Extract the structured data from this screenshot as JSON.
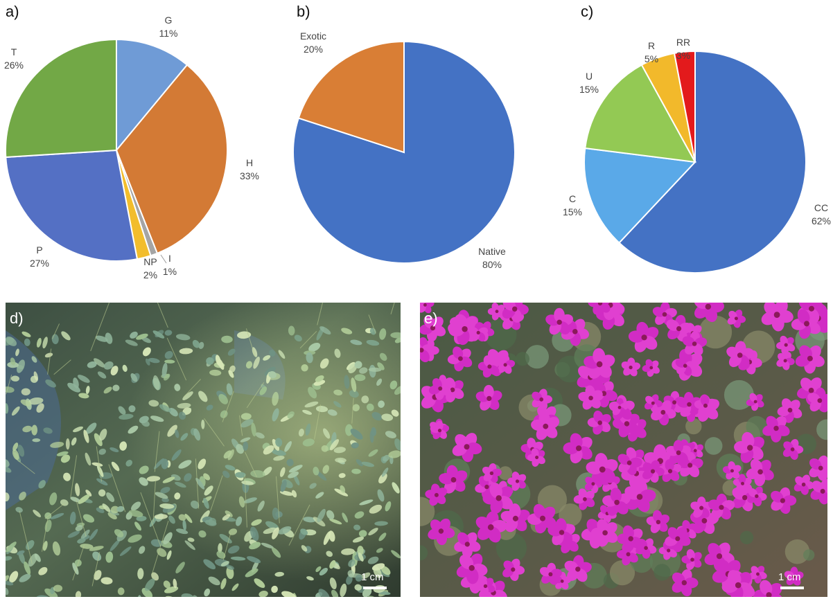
{
  "chart_data": [
    {
      "type": "pie",
      "panel_label": "a)",
      "slices": [
        {
          "label": "G",
          "value": 11,
          "pct": "11%",
          "color": "#6f9bd6"
        },
        {
          "label": "H",
          "value": 33,
          "pct": "33%",
          "color": "#d37a35"
        },
        {
          "label": "I",
          "value": 1,
          "pct": "1%",
          "color": "#a5a5a5"
        },
        {
          "label": "NP",
          "value": 2,
          "pct": "2%",
          "color": "#f2bd2c"
        },
        {
          "label": "P",
          "value": 27,
          "pct": "27%",
          "color": "#5470c4"
        },
        {
          "label": "T",
          "value": 26,
          "pct": "26%",
          "color": "#72a846"
        }
      ]
    },
    {
      "type": "pie",
      "panel_label": "b)",
      "slices": [
        {
          "label": "Native",
          "value": 80,
          "pct": "80%",
          "color": "#4472c4"
        },
        {
          "label": "Exotic",
          "value": 20,
          "pct": "20%",
          "color": "#d97e35"
        }
      ]
    },
    {
      "type": "pie",
      "panel_label": "c)",
      "slices": [
        {
          "label": "CC",
          "value": 62,
          "pct": "62%",
          "color": "#4472c4"
        },
        {
          "label": "C",
          "value": 15,
          "pct": "15%",
          "color": "#5aa9e8"
        },
        {
          "label": "U",
          "value": 15,
          "pct": "15%",
          "color": "#93c954"
        },
        {
          "label": "R",
          "value": 5,
          "pct": "5%",
          "color": "#f2b92b"
        },
        {
          "label": "RR",
          "value": 3,
          "pct": "3%",
          "color": "#e31a1c"
        }
      ]
    }
  ],
  "photos": [
    {
      "panel_label": "d)",
      "scale_label": "1 cm",
      "subject": "green-leaved-shrub"
    },
    {
      "panel_label": "e)",
      "scale_label": "1 cm",
      "subject": "magenta-flowers"
    }
  ]
}
